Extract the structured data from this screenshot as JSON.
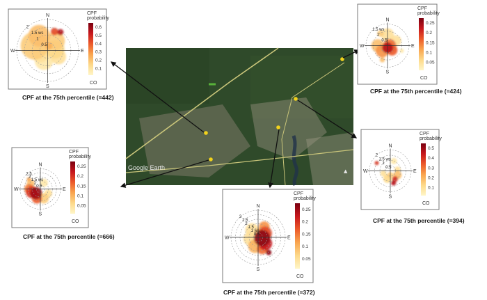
{
  "map": {
    "watermark": "Google Earth",
    "colors": {
      "forest": "#2f4a2a",
      "road": "#c9c57a",
      "urban": "#8d8a78",
      "marker": "#f2d21b"
    }
  },
  "legend_shared": {
    "title_line1": "CPF",
    "title_line2": "probability",
    "pollutant": "CO",
    "colors": [
      "#fff6c8",
      "#fdd98a",
      "#f9a54f",
      "#ec5a2a",
      "#c7171d",
      "#7a0010"
    ]
  },
  "direction_labels": {
    "north": "N",
    "south": "S",
    "east": "E",
    "west": "W"
  },
  "speed_unit": "ws",
  "panels": [
    {
      "id": "top-left",
      "caption": "CPF at the 75th percentile (=442)",
      "legend_ticks": [
        "0.6",
        "0.5",
        "0.4",
        "0.3",
        "0.2",
        "0.1"
      ],
      "ring_labels": [
        "2",
        "1.5 ws",
        "1",
        "0.5"
      ],
      "blobs": [
        {
          "angle": 290,
          "dist": 0.45,
          "r": 0.45,
          "level": 0.25
        },
        {
          "angle": 330,
          "dist": 0.55,
          "r": 0.35,
          "level": 0.3
        },
        {
          "angle": 40,
          "dist": 0.4,
          "r": 0.3,
          "level": 0.25
        },
        {
          "angle": 80,
          "dist": 0.25,
          "r": 0.3,
          "level": 0.2
        },
        {
          "angle": 120,
          "dist": 0.4,
          "r": 0.25,
          "level": 0.15
        },
        {
          "angle": 200,
          "dist": 0.35,
          "r": 0.3,
          "level": 0.1
        },
        {
          "angle": 250,
          "dist": 0.25,
          "r": 0.3,
          "level": 0.15
        },
        {
          "angle": 20,
          "dist": 0.65,
          "r": 0.12,
          "level": 0.65
        },
        {
          "angle": 35,
          "dist": 0.72,
          "r": 0.1,
          "level": 0.85
        },
        {
          "angle": 15,
          "dist": 0.15,
          "r": 0.12,
          "level": 0.35
        }
      ]
    },
    {
      "id": "top-right",
      "caption": "CPF at the 75th percentile (=424)",
      "legend_ticks": [
        "0.25",
        "0.2",
        "0.15",
        "0.1",
        "0.05"
      ],
      "ring_labels": [
        "1.5 ws",
        "1",
        "0.5"
      ],
      "blobs": [
        {
          "angle": 90,
          "dist": 0.1,
          "r": 0.3,
          "level": 0.55
        },
        {
          "angle": 180,
          "dist": 0.1,
          "r": 0.25,
          "level": 0.85
        },
        {
          "angle": 135,
          "dist": 0.3,
          "r": 0.25,
          "level": 0.6
        },
        {
          "angle": 225,
          "dist": 0.35,
          "r": 0.3,
          "level": 0.45
        },
        {
          "angle": 270,
          "dist": 0.45,
          "r": 0.3,
          "level": 0.3
        },
        {
          "angle": 0,
          "dist": 0.5,
          "r": 0.3,
          "level": 0.15
        },
        {
          "angle": 330,
          "dist": 0.65,
          "r": 0.15,
          "level": 0.25
        },
        {
          "angle": 60,
          "dist": 0.45,
          "r": 0.25,
          "level": 0.15
        },
        {
          "angle": 110,
          "dist": 0.7,
          "r": 0.1,
          "level": 0.1
        },
        {
          "angle": 200,
          "dist": 0.7,
          "r": 0.12,
          "level": 0.3
        }
      ]
    },
    {
      "id": "middle-left",
      "caption": "CPF at the 75th percentile (=666)",
      "legend_ticks": [
        "0.25",
        "0.2",
        "0.15",
        "0.1",
        "0.05"
      ],
      "ring_labels": [
        "2.5",
        "2",
        "1.5 ws",
        "1",
        "0.5"
      ],
      "blobs": [
        {
          "angle": 225,
          "dist": 0.3,
          "r": 0.3,
          "level": 0.9
        },
        {
          "angle": 250,
          "dist": 0.45,
          "r": 0.3,
          "level": 0.7
        },
        {
          "angle": 200,
          "dist": 0.5,
          "r": 0.25,
          "level": 0.6
        },
        {
          "angle": 270,
          "dist": 0.55,
          "r": 0.25,
          "level": 0.5
        },
        {
          "angle": 300,
          "dist": 0.55,
          "r": 0.2,
          "level": 0.3
        },
        {
          "angle": 160,
          "dist": 0.5,
          "r": 0.25,
          "level": 0.25
        },
        {
          "angle": 120,
          "dist": 0.45,
          "r": 0.2,
          "level": 0.15
        },
        {
          "angle": 30,
          "dist": 0.35,
          "r": 0.2,
          "level": 0.1
        },
        {
          "angle": 310,
          "dist": 0.75,
          "r": 0.1,
          "level": 0.4
        }
      ]
    },
    {
      "id": "middle-right",
      "caption": "CPF at the 75th percentile (=394)",
      "legend_ticks": [
        "0.5",
        "0.4",
        "0.3",
        "0.2",
        "0.1"
      ],
      "ring_labels": [
        "2",
        "1.5 ws",
        "1",
        "0.5"
      ],
      "blobs": [
        {
          "angle": 150,
          "dist": 0.45,
          "r": 0.14,
          "level": 0.75
        },
        {
          "angle": 165,
          "dist": 0.6,
          "r": 0.12,
          "level": 0.85
        },
        {
          "angle": 120,
          "dist": 0.4,
          "r": 0.2,
          "level": 0.3
        },
        {
          "angle": 200,
          "dist": 0.4,
          "r": 0.2,
          "level": 0.2
        },
        {
          "angle": 250,
          "dist": 0.35,
          "r": 0.15,
          "level": 0.15
        },
        {
          "angle": 300,
          "dist": 0.75,
          "r": 0.1,
          "level": 0.7
        },
        {
          "angle": 80,
          "dist": 0.35,
          "r": 0.15,
          "level": 0.15
        },
        {
          "angle": 20,
          "dist": 0.5,
          "r": 0.15,
          "level": 0.1
        },
        {
          "angle": 180,
          "dist": 0.2,
          "r": 0.15,
          "level": 0.25
        }
      ]
    },
    {
      "id": "bottom-center",
      "caption": "CPF at the 75th percentile (=372)",
      "legend_ticks": [
        "0.25",
        "0.2",
        "0.15",
        "0.1",
        "0.05"
      ],
      "ring_labels": [
        "3",
        "2.5",
        "2",
        "1.5",
        "1 ws",
        "0.5"
      ],
      "blobs": [
        {
          "angle": 100,
          "dist": 0.15,
          "r": 0.3,
          "level": 0.95
        },
        {
          "angle": 60,
          "dist": 0.3,
          "r": 0.25,
          "level": 0.65
        },
        {
          "angle": 130,
          "dist": 0.35,
          "r": 0.25,
          "level": 0.8
        },
        {
          "angle": 30,
          "dist": 0.45,
          "r": 0.2,
          "level": 0.45
        },
        {
          "angle": 160,
          "dist": 0.45,
          "r": 0.2,
          "level": 0.55
        },
        {
          "angle": 200,
          "dist": 0.35,
          "r": 0.25,
          "level": 0.35
        },
        {
          "angle": 260,
          "dist": 0.3,
          "r": 0.25,
          "level": 0.15
        },
        {
          "angle": 320,
          "dist": 0.35,
          "r": 0.25,
          "level": 0.15
        },
        {
          "angle": 145,
          "dist": 0.68,
          "r": 0.1,
          "level": 0.95
        },
        {
          "angle": 10,
          "dist": 0.2,
          "r": 0.15,
          "level": 0.3
        }
      ]
    }
  ]
}
